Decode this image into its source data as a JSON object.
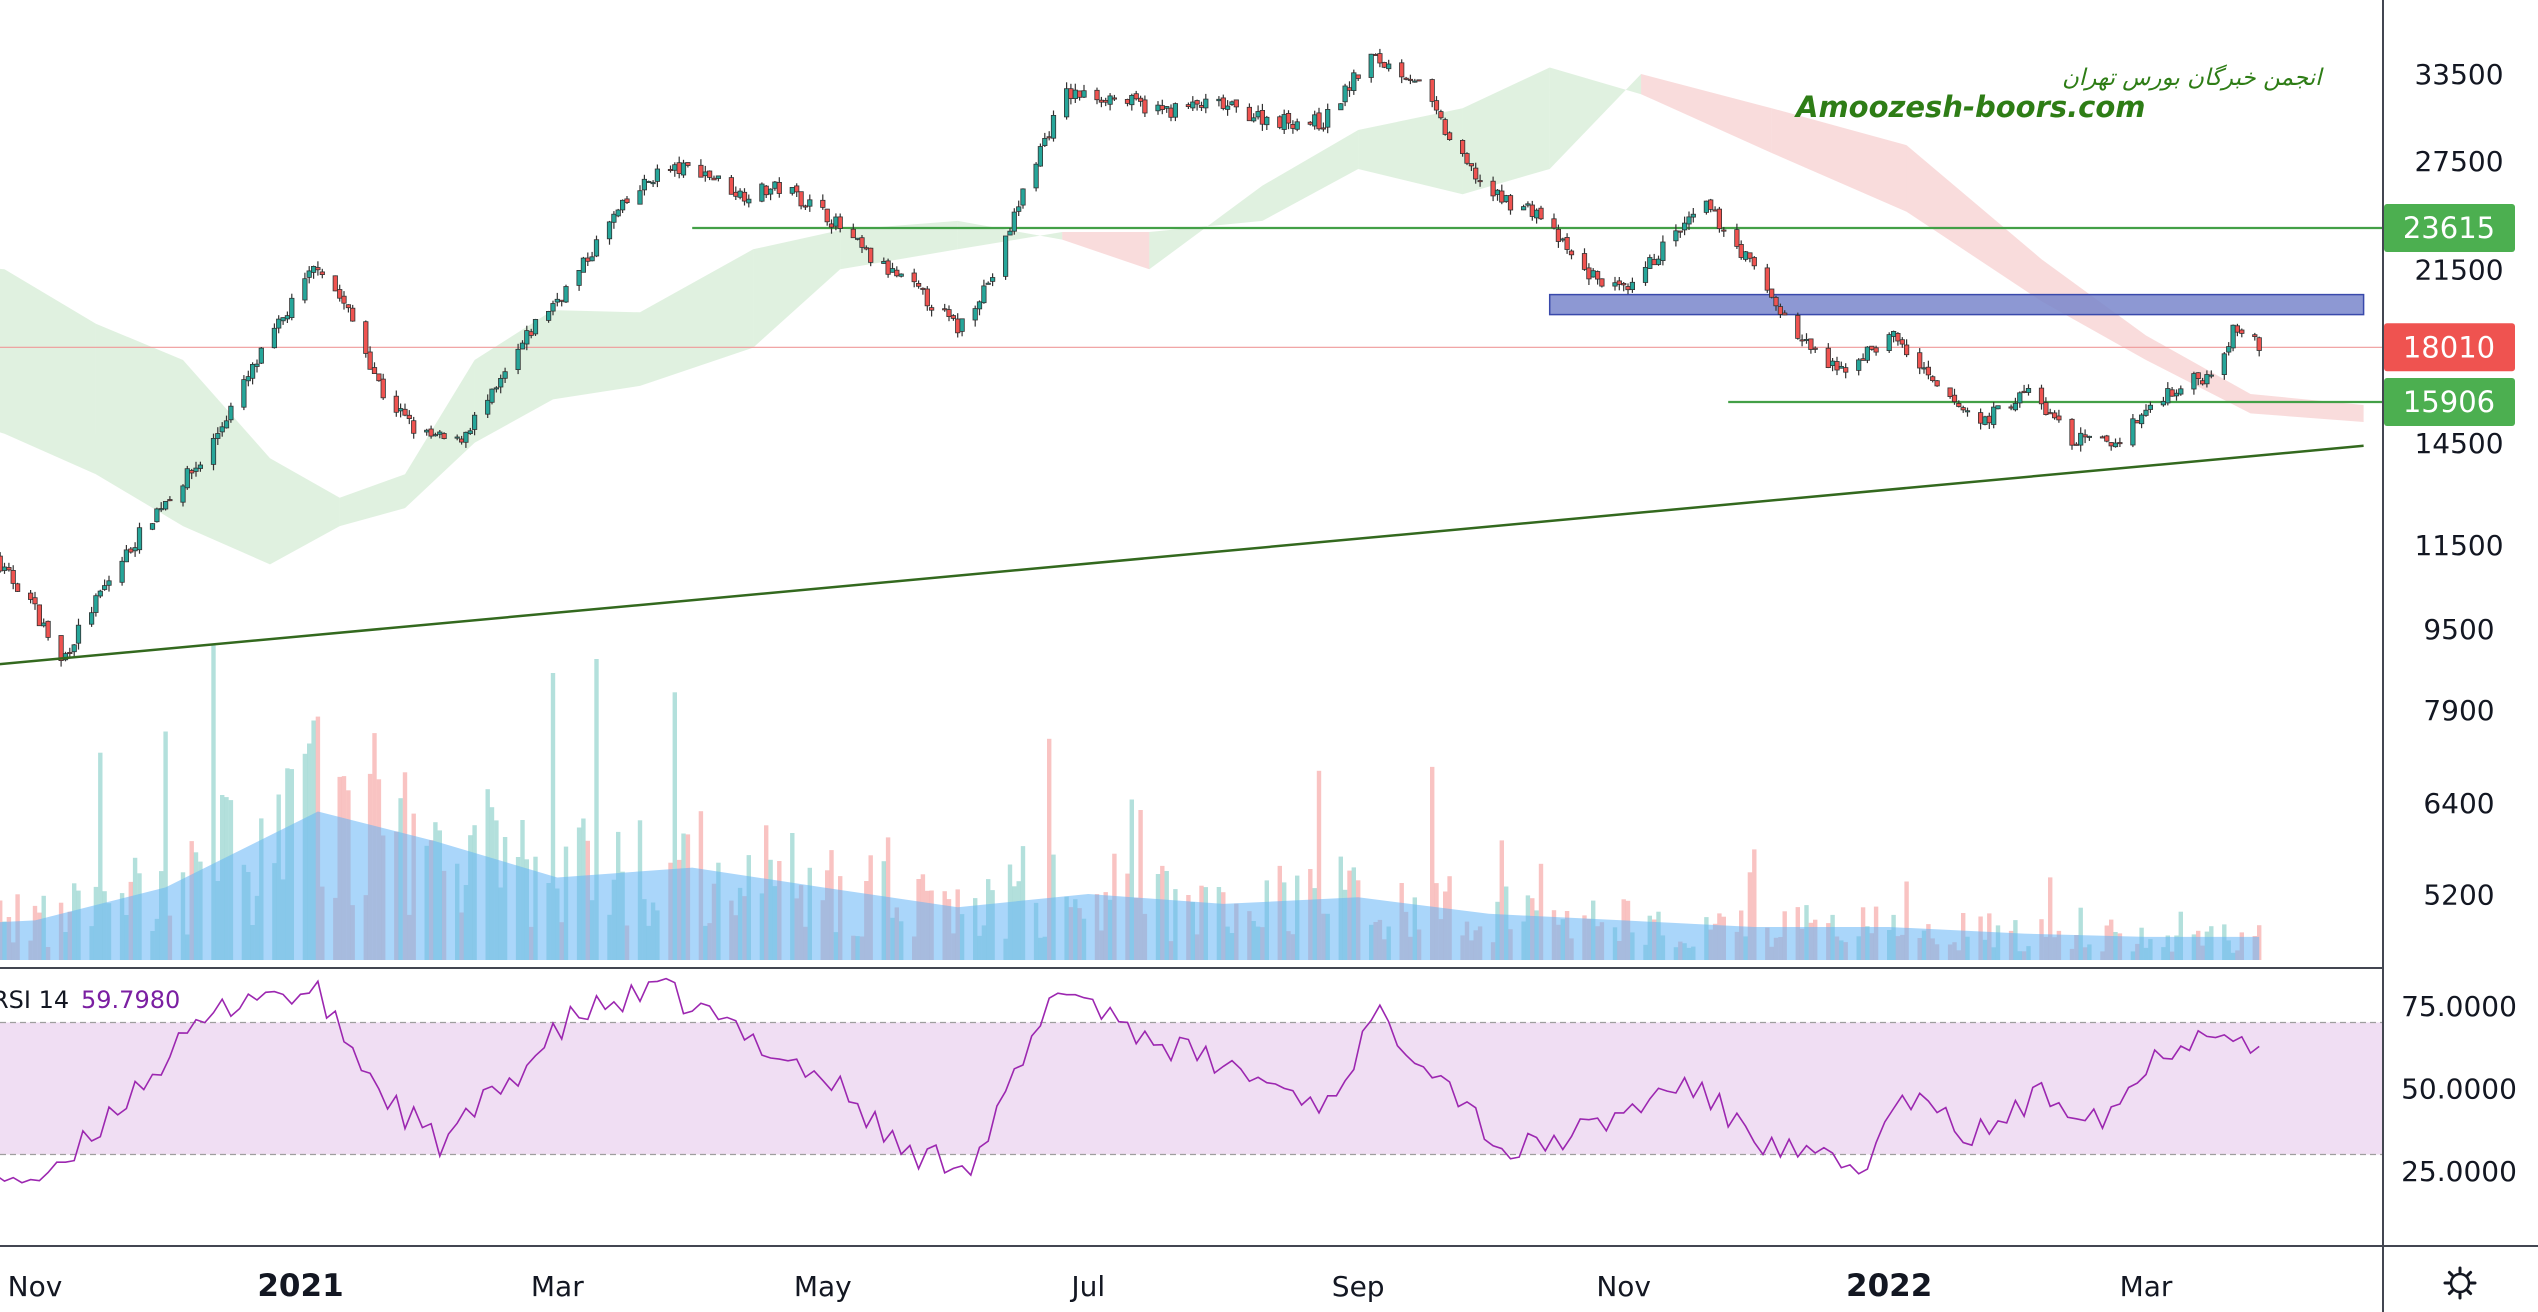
{
  "watermark": {
    "persian": "انجمن خبرگان بورس تهران",
    "site": "Amoozesh-boors.com"
  },
  "colors": {
    "up": "#26a69a",
    "down": "#ef5350",
    "cloud_bull": "#a5d6a7",
    "cloud_bear": "#ef9a9a",
    "volume_ma": "#64b5f6",
    "rsi_line": "#9c27b0",
    "rsi_band": "#e1bee7",
    "trend_line": "#33691e",
    "level_line": "#43a047",
    "resistance_zone": "#7986cb"
  },
  "price_tags": [
    {
      "label": "23615",
      "value": 23615,
      "color": "#4caf50"
    },
    {
      "label": "18010",
      "value": 18010,
      "color": "#ef5350"
    },
    {
      "label": "15906",
      "value": 15906,
      "color": "#4caf50"
    }
  ],
  "rsi_header": {
    "name": "RSI 14",
    "value": "59.7980"
  },
  "chart_data": {
    "type": "candlestick",
    "symbol_timeframe": "daily",
    "y_scale": "log",
    "price_ticks": [
      {
        "label": "33500",
        "value": 33500
      },
      {
        "label": "27500",
        "value": 27500
      },
      {
        "label": "21500",
        "value": 21500
      },
      {
        "label": "14500",
        "value": 14500
      },
      {
        "label": "11500",
        "value": 11500
      },
      {
        "label": "9500",
        "value": 9500
      },
      {
        "label": "7900",
        "value": 7900
      },
      {
        "label": "6400",
        "value": 6400
      },
      {
        "label": "5200",
        "value": 5200
      }
    ],
    "rsi_ticks": [
      {
        "label": "75.0000",
        "value": 75
      },
      {
        "label": "50.0000",
        "value": 50
      },
      {
        "label": "25.0000",
        "value": 25
      }
    ],
    "x_ticks": [
      {
        "label": "Nov",
        "date": "2020-11-01",
        "bold": false
      },
      {
        "label": "2021",
        "date": "2021-01-01",
        "bold": true
      },
      {
        "label": "Mar",
        "date": "2021-03-01",
        "bold": false
      },
      {
        "label": "May",
        "date": "2021-05-01",
        "bold": false
      },
      {
        "label": "Jul",
        "date": "2021-07-01",
        "bold": false
      },
      {
        "label": "Sep",
        "date": "2021-09-01",
        "bold": false
      },
      {
        "label": "Nov",
        "date": "2021-11-01",
        "bold": false
      },
      {
        "label": "2022",
        "date": "2022-01-01",
        "bold": true
      },
      {
        "label": "Mar",
        "date": "2022-03-01",
        "bold": false
      }
    ],
    "close_path": [
      [
        "2020-10-10",
        12700
      ],
      [
        "2020-10-20",
        11300
      ],
      [
        "2020-10-30",
        10300
      ],
      [
        "2020-11-07",
        8800
      ],
      [
        "2020-11-18",
        10600
      ],
      [
        "2020-11-30",
        12600
      ],
      [
        "2020-12-10",
        14000
      ],
      [
        "2020-12-20",
        16800
      ],
      [
        "2020-12-28",
        19200
      ],
      [
        "2021-01-05",
        21800
      ],
      [
        "2021-01-12",
        19500
      ],
      [
        "2021-01-20",
        16200
      ],
      [
        "2021-01-28",
        14800
      ],
      [
        "2021-02-06",
        14500
      ],
      [
        "2021-02-15",
        16300
      ],
      [
        "2021-02-24",
        19000
      ],
      [
        "2021-03-05",
        21000
      ],
      [
        "2021-03-14",
        24200
      ],
      [
        "2021-03-24",
        26800
      ],
      [
        "2021-04-02",
        27100
      ],
      [
        "2021-04-12",
        25500
      ],
      [
        "2021-04-22",
        25900
      ],
      [
        "2021-05-02",
        24300
      ],
      [
        "2021-05-12",
        22000
      ],
      [
        "2021-05-22",
        20600
      ],
      [
        "2021-06-01",
        18800
      ],
      [
        "2021-06-10",
        21500
      ],
      [
        "2021-06-18",
        27000
      ],
      [
        "2021-06-26",
        32000
      ],
      [
        "2021-07-06",
        31800
      ],
      [
        "2021-07-18",
        30800
      ],
      [
        "2021-07-30",
        31300
      ],
      [
        "2021-08-12",
        30200
      ],
      [
        "2021-08-24",
        30000
      ],
      [
        "2021-09-04",
        34800
      ],
      [
        "2021-09-14",
        33200
      ],
      [
        "2021-09-24",
        27800
      ],
      [
        "2021-10-02",
        25400
      ],
      [
        "2021-10-12",
        24500
      ],
      [
        "2021-10-22",
        21500
      ],
      [
        "2021-11-02",
        20300
      ],
      [
        "2021-11-10",
        22600
      ],
      [
        "2021-11-20",
        24800
      ],
      [
        "2021-11-30",
        21800
      ],
      [
        "2021-12-10",
        18600
      ],
      [
        "2021-12-20",
        17000
      ],
      [
        "2022-01-02",
        18500
      ],
      [
        "2022-01-12",
        16300
      ],
      [
        "2022-01-22",
        15200
      ],
      [
        "2022-02-02",
        16300
      ],
      [
        "2022-02-12",
        14600
      ],
      [
        "2022-02-22",
        14500
      ],
      [
        "2022-03-05",
        16200
      ],
      [
        "2022-03-15",
        16900
      ],
      [
        "2022-03-22",
        18900
      ],
      [
        "2022-03-27",
        18010
      ]
    ],
    "cloud": [
      {
        "date": "2020-10-01",
        "a": 22000,
        "b": 16000
      },
      {
        "date": "2020-10-25",
        "a": 21500,
        "b": 14800
      },
      {
        "date": "2020-11-15",
        "a": 19000,
        "b": 13500
      },
      {
        "date": "2020-12-05",
        "a": 17500,
        "b": 12000
      },
      {
        "date": "2020-12-25",
        "a": 14000,
        "b": 11000
      },
      {
        "date": "2021-01-10",
        "a": 12800,
        "b": 12000
      },
      {
        "date": "2021-01-25",
        "a": 13500,
        "b": 12500
      },
      {
        "date": "2021-02-10",
        "a": 17500,
        "b": 14500
      },
      {
        "date": "2021-02-28",
        "a": 19600,
        "b": 16000
      },
      {
        "date": "2021-03-20",
        "a": 19500,
        "b": 16500
      },
      {
        "date": "2021-04-15",
        "a": 22500,
        "b": 18000
      },
      {
        "date": "2021-05-05",
        "a": 23500,
        "b": 21500
      },
      {
        "date": "2021-06-01",
        "a": 24000,
        "b": 22500
      },
      {
        "date": "2021-06-25",
        "a": 23000,
        "b": 23400
      },
      {
        "date": "2021-07-15",
        "a": 21500,
        "b": 23400
      },
      {
        "date": "2021-08-10",
        "a": 26000,
        "b": 24000
      },
      {
        "date": "2021-09-01",
        "a": 29500,
        "b": 27000
      },
      {
        "date": "2021-09-25",
        "a": 31000,
        "b": 25500
      },
      {
        "date": "2021-10-15",
        "a": 34000,
        "b": 27000
      },
      {
        "date": "2021-11-05",
        "a": 32000,
        "b": 33500
      },
      {
        "date": "2021-12-05",
        "a": 28000,
        "b": 31000
      },
      {
        "date": "2022-01-05",
        "a": 24500,
        "b": 28500
      },
      {
        "date": "2022-02-05",
        "a": 20000,
        "b": 22000
      },
      {
        "date": "2022-03-01",
        "a": 17500,
        "b": 18500
      },
      {
        "date": "2022-03-25",
        "a": 15500,
        "b": 16200
      },
      {
        "date": "2022-04-20",
        "a": 15200,
        "b": 15800
      }
    ],
    "lines": [
      {
        "kind": "trendline",
        "from": [
          "2020-10-15",
          8700
        ],
        "to": [
          "2022-04-20",
          14400
        ]
      },
      {
        "kind": "horizontal",
        "value": 23615,
        "from_date": "2021-04-01",
        "to_date": "2022-04-30"
      },
      {
        "kind": "horizontal",
        "value": 15906,
        "from_date": "2021-11-25",
        "to_date": "2022-04-30"
      },
      {
        "kind": "horizontal_thin",
        "value": 18010,
        "from_date": "2020-10-01",
        "to_date": "2022-04-30"
      }
    ],
    "zones": [
      {
        "kind": "resistance",
        "from_date": "2021-10-15",
        "to_date": "2022-04-20",
        "low": 19400,
        "high": 20300
      }
    ],
    "volume": {
      "max_level": 1.0,
      "ma_path": [
        [
          "2020-10-01",
          0.1
        ],
        [
          "2020-11-01",
          0.12
        ],
        [
          "2020-12-01",
          0.22
        ],
        [
          "2021-01-05",
          0.45
        ],
        [
          "2021-02-01",
          0.36
        ],
        [
          "2021-03-01",
          0.25
        ],
        [
          "2021-04-01",
          0.28
        ],
        [
          "2021-05-01",
          0.22
        ],
        [
          "2021-06-01",
          0.16
        ],
        [
          "2021-07-01",
          0.2
        ],
        [
          "2021-08-01",
          0.17
        ],
        [
          "2021-09-01",
          0.19
        ],
        [
          "2021-10-01",
          0.14
        ],
        [
          "2021-11-01",
          0.12
        ],
        [
          "2021-12-01",
          0.1
        ],
        [
          "2022-01-01",
          0.1
        ],
        [
          "2022-02-01",
          0.08
        ],
        [
          "2022-03-01",
          0.07
        ],
        [
          "2022-03-27",
          0.07
        ]
      ]
    },
    "rsi": {
      "upper_band": 70,
      "lower_band": 30,
      "path": [
        [
          "2020-10-01",
          30
        ],
        [
          "2020-10-20",
          25
        ],
        [
          "2020-11-05",
          22
        ],
        [
          "2020-11-20",
          45
        ],
        [
          "2020-12-10",
          70
        ],
        [
          "2020-12-20",
          79
        ],
        [
          "2021-01-05",
          78
        ],
        [
          "2021-01-20",
          48
        ],
        [
          "2021-02-02",
          33
        ],
        [
          "2021-02-20",
          55
        ],
        [
          "2021-03-05",
          72
        ],
        [
          "2021-03-25",
          80
        ],
        [
          "2021-04-15",
          65
        ],
        [
          "2021-05-05",
          50
        ],
        [
          "2021-05-20",
          30
        ],
        [
          "2021-06-05",
          28
        ],
        [
          "2021-06-25",
          82
        ],
        [
          "2021-07-15",
          65
        ],
        [
          "2021-08-05",
          55
        ],
        [
          "2021-08-25",
          45
        ],
        [
          "2021-09-05",
          72
        ],
        [
          "2021-09-20",
          55
        ],
        [
          "2021-10-05",
          30
        ],
        [
          "2021-10-25",
          38
        ],
        [
          "2021-11-15",
          52
        ],
        [
          "2021-12-05",
          32
        ],
        [
          "2021-12-25",
          25
        ],
        [
          "2022-01-05",
          48
        ],
        [
          "2022-01-20",
          35
        ],
        [
          "2022-02-05",
          48
        ],
        [
          "2022-02-20",
          42
        ],
        [
          "2022-03-05",
          62
        ],
        [
          "2022-03-20",
          70
        ],
        [
          "2022-03-27",
          60
        ]
      ]
    }
  }
}
